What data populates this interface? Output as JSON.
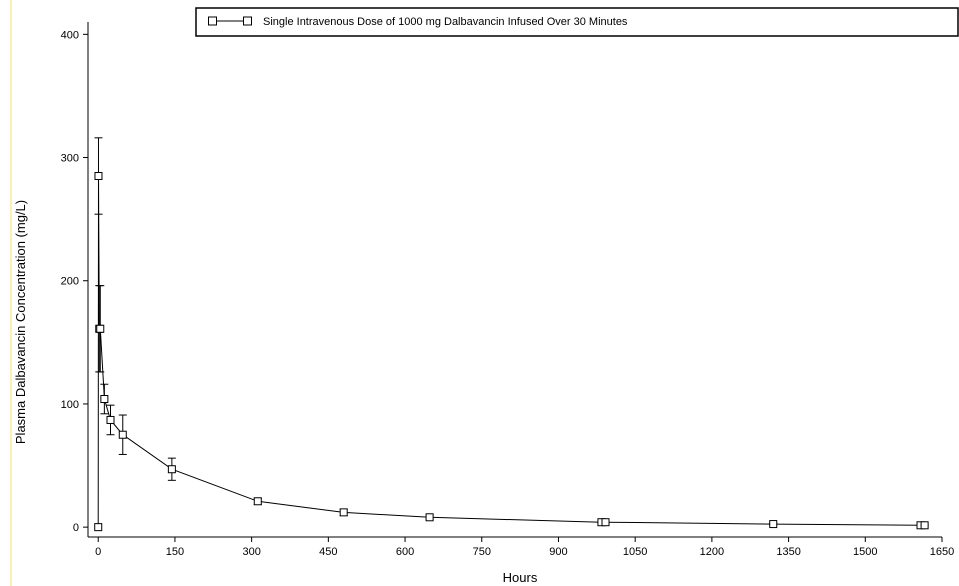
{
  "chart_data": {
    "type": "line",
    "title": "",
    "xlabel": "Hours",
    "ylabel": "Plasma Dalbavancin Concentration (mg/L)",
    "xlim": [
      -20,
      1650
    ],
    "ylim": [
      -8,
      410
    ],
    "x_ticks": [
      0,
      150,
      300,
      450,
      600,
      750,
      900,
      1050,
      1200,
      1350,
      1500,
      1650
    ],
    "y_ticks": [
      0,
      100,
      200,
      300,
      400
    ],
    "legend": {
      "position": "top-right",
      "label": "Single Intravenous Dose of 1000 mg Dalbavancin Infused Over 30 Minutes"
    },
    "series": [
      {
        "name": "Single Intravenous Dose of 1000 mg Dalbavancin Infused Over 30 Minutes",
        "marker": "open-square",
        "color": "#000000",
        "points": [
          {
            "x": 0,
            "y": 0,
            "err": 0
          },
          {
            "x": 0.5,
            "y": 285,
            "err": 31
          },
          {
            "x": 2,
            "y": 161,
            "err": 35
          },
          {
            "x": 4,
            "y": 161,
            "err": 35
          },
          {
            "x": 12,
            "y": 104,
            "err": 12
          },
          {
            "x": 24,
            "y": 87,
            "err": 12
          },
          {
            "x": 48,
            "y": 75,
            "err": 16
          },
          {
            "x": 144,
            "y": 47,
            "err": 9
          },
          {
            "x": 312,
            "y": 21,
            "err": 2.5
          },
          {
            "x": 480,
            "y": 12,
            "err": 2.5
          },
          {
            "x": 648,
            "y": 8,
            "err": 2
          },
          {
            "x": 984,
            "y": 4,
            "err": 1
          },
          {
            "x": 992,
            "y": 4,
            "err": 1
          },
          {
            "x": 1320,
            "y": 2.5,
            "err": 0.8
          },
          {
            "x": 1608,
            "y": 1.5,
            "err": 0.6
          },
          {
            "x": 1616,
            "y": 1.5,
            "err": 0.6
          }
        ]
      }
    ]
  }
}
